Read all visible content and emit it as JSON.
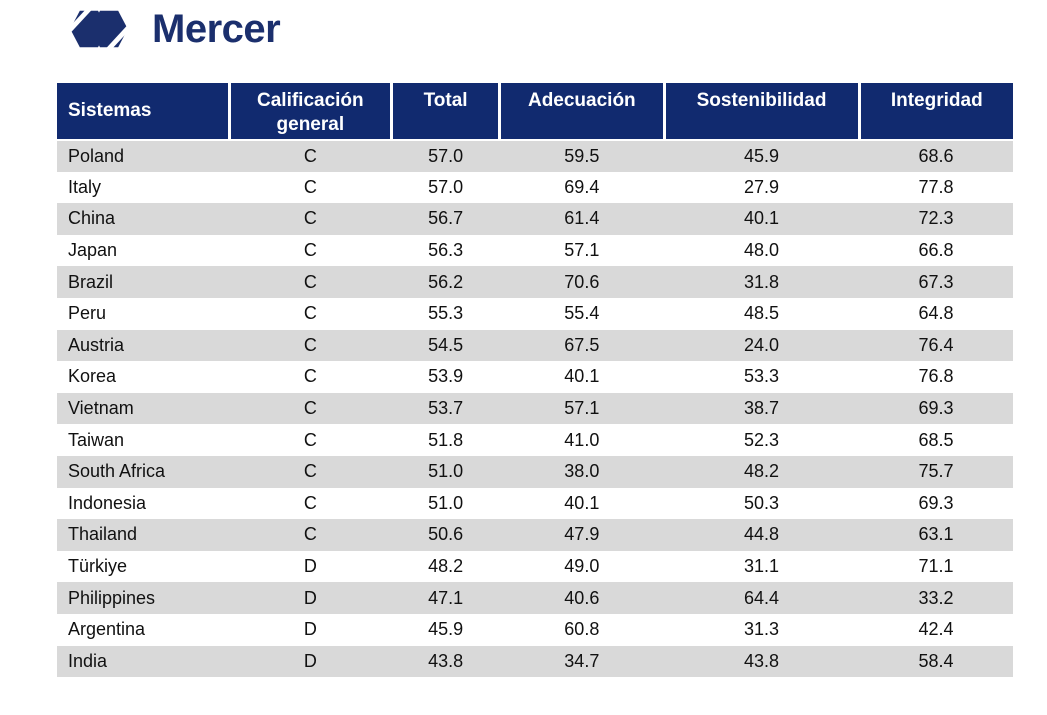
{
  "brand": {
    "name": "Mercer",
    "logo_icon": "mercer-interlocking-hexagons-icon",
    "color": "#1B2F6D"
  },
  "colors": {
    "header_bg": "#112A6F",
    "row_stripe": "#D9D9D9",
    "row_plain": "#FFFFFF",
    "header_text": "#FFFFFF",
    "body_text": "#111111"
  },
  "chart_data": {
    "type": "table",
    "title": "",
    "columns": [
      "Sistemas",
      "Calificación general",
      "Total",
      "Adecuación",
      "Sostenibilidad",
      "Integridad"
    ],
    "rows": [
      [
        "Poland",
        "C",
        "57.0",
        "59.5",
        "45.9",
        "68.6"
      ],
      [
        "Italy",
        "C",
        "57.0",
        "69.4",
        "27.9",
        "77.8"
      ],
      [
        "China",
        "C",
        "56.7",
        "61.4",
        "40.1",
        "72.3"
      ],
      [
        "Japan",
        "C",
        "56.3",
        "57.1",
        "48.0",
        "66.8"
      ],
      [
        "Brazil",
        "C",
        "56.2",
        "70.6",
        "31.8",
        "67.3"
      ],
      [
        "Peru",
        "C",
        "55.3",
        "55.4",
        "48.5",
        "64.8"
      ],
      [
        "Austria",
        "C",
        "54.5",
        "67.5",
        "24.0",
        "76.4"
      ],
      [
        "Korea",
        "C",
        "53.9",
        "40.1",
        "53.3",
        "76.8"
      ],
      [
        "Vietnam",
        "C",
        "53.7",
        "57.1",
        "38.7",
        "69.3"
      ],
      [
        "Taiwan",
        "C",
        "51.8",
        "41.0",
        "52.3",
        "68.5"
      ],
      [
        "South Africa",
        "C",
        "51.0",
        "38.0",
        "48.2",
        "75.7"
      ],
      [
        "Indonesia",
        "C",
        "51.0",
        "40.1",
        "50.3",
        "69.3"
      ],
      [
        "Thailand",
        "C",
        "50.6",
        "47.9",
        "44.8",
        "63.1"
      ],
      [
        "Türkiye",
        "D",
        "48.2",
        "49.0",
        "31.1",
        "71.1"
      ],
      [
        "Philippines",
        "D",
        "47.1",
        "40.6",
        "64.4",
        "33.2"
      ],
      [
        "Argentina",
        "D",
        "45.9",
        "60.8",
        "31.3",
        "42.4"
      ],
      [
        "India",
        "D",
        "43.8",
        "34.7",
        "43.8",
        "58.4"
      ]
    ]
  }
}
